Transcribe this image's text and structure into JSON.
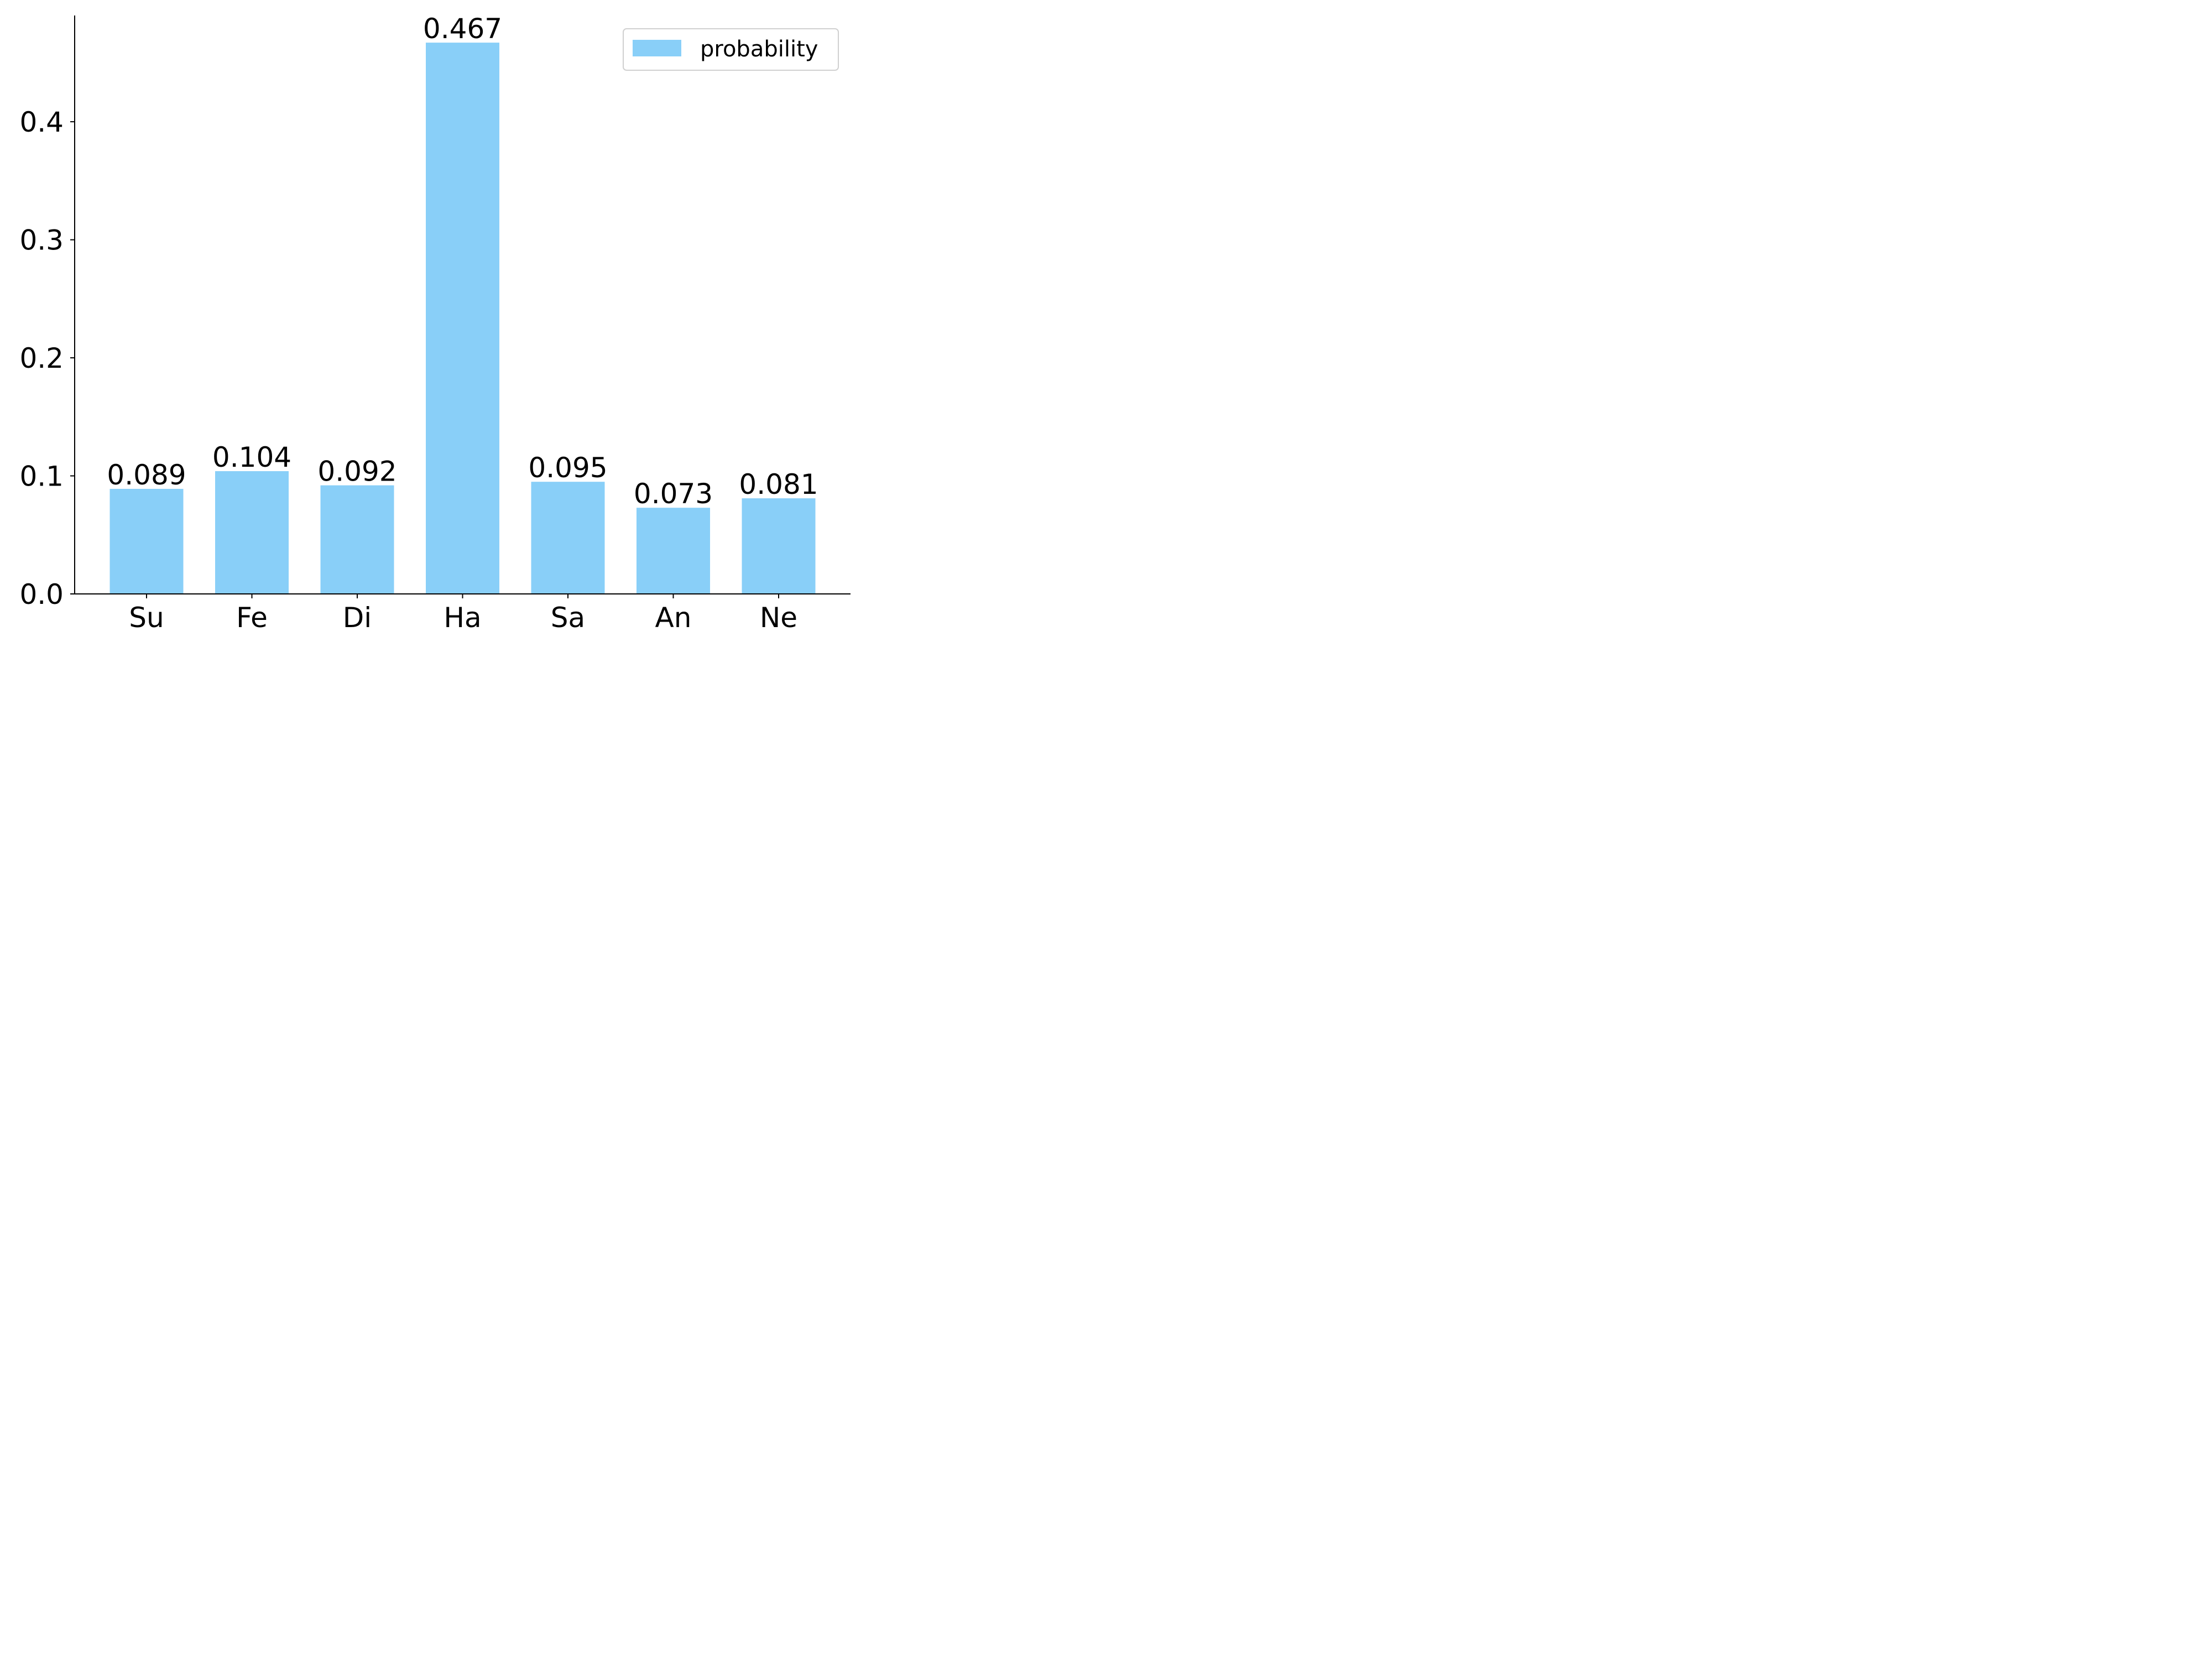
{
  "chart_data": {
    "type": "bar",
    "categories": [
      "Su",
      "Fe",
      "Di",
      "Ha",
      "Sa",
      "An",
      "Ne"
    ],
    "series": [
      {
        "name": "probability",
        "values": [
          0.089,
          0.104,
          0.092,
          0.467,
          0.095,
          0.073,
          0.081
        ],
        "color": "#89CFF8"
      }
    ],
    "data_labels": [
      "0.089",
      "0.104",
      "0.092",
      "0.467",
      "0.095",
      "0.073",
      "0.081"
    ],
    "yticks": [
      0.0,
      0.1,
      0.2,
      0.3,
      0.4
    ],
    "ytick_labels": [
      "0.0",
      "0.1",
      "0.2",
      "0.3",
      "0.4"
    ],
    "ylim": [
      0,
      0.49
    ],
    "grid": false,
    "legend_position": "top-right",
    "spines": [
      "left",
      "bottom"
    ]
  }
}
